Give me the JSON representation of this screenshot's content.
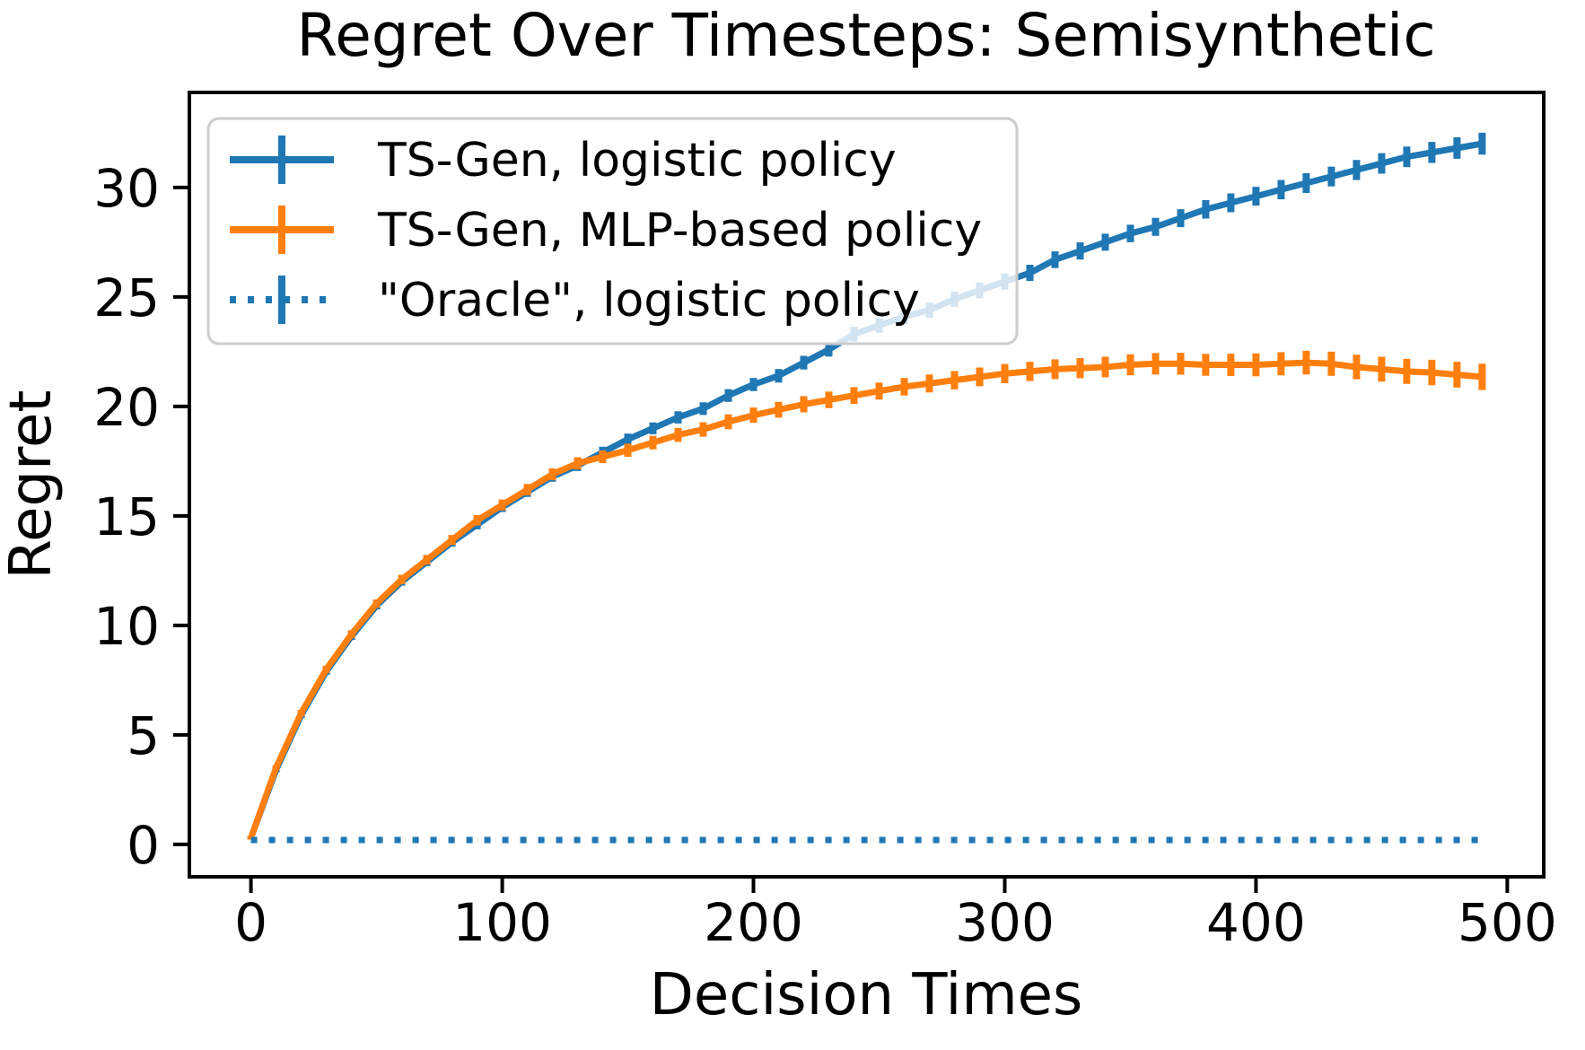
{
  "title": "Regret Over Timesteps: Semisynthetic",
  "axes": {
    "xlabel": "Decision Times",
    "ylabel": "Regret"
  },
  "legend": {
    "entries": [
      {
        "label": "TS-Gen, logistic policy",
        "color": "#1f77b4",
        "style": "solid"
      },
      {
        "label": "TS-Gen, MLP-based policy",
        "color": "#ff7f0e",
        "style": "solid"
      },
      {
        "label": "\"Oracle\", logistic policy",
        "color": "#1f77b4",
        "style": "dotted"
      }
    ],
    "border_color": "#cccccc",
    "background": "rgba(255,255,255,0.8)"
  },
  "chart_data": {
    "type": "line",
    "title": "Regret Over Timesteps: Semisynthetic",
    "xlabel": "Decision Times",
    "ylabel": "Regret",
    "xlim": [
      -24.5,
      514.5
    ],
    "ylim": [
      -1.48,
      34.34
    ],
    "x_ticks": [
      0,
      100,
      200,
      300,
      400,
      500
    ],
    "y_ticks": [
      0,
      5,
      10,
      15,
      20,
      25,
      30
    ],
    "grid": false,
    "legend_position": "upper left",
    "x": [
      0,
      10,
      20,
      30,
      40,
      50,
      60,
      70,
      80,
      90,
      100,
      110,
      120,
      130,
      140,
      150,
      160,
      170,
      180,
      190,
      200,
      210,
      220,
      230,
      240,
      250,
      260,
      270,
      280,
      290,
      300,
      310,
      320,
      330,
      340,
      350,
      360,
      370,
      380,
      390,
      400,
      410,
      420,
      430,
      440,
      450,
      460,
      470,
      480,
      490
    ],
    "series": [
      {
        "name": "TS-Gen, logistic policy",
        "color": "#1f77b4",
        "style": "solid",
        "marker": "errorbar",
        "values": [
          0.3,
          3.4,
          5.9,
          7.9,
          9.5,
          10.9,
          12.0,
          12.9,
          13.8,
          14.6,
          15.4,
          16.1,
          16.8,
          17.3,
          17.9,
          18.5,
          19.0,
          19.5,
          19.9,
          20.5,
          21.0,
          21.4,
          22.0,
          22.6,
          23.3,
          23.7,
          24.1,
          24.4,
          24.9,
          25.3,
          25.7,
          26.1,
          26.7,
          27.1,
          27.5,
          27.9,
          28.2,
          28.6,
          29.0,
          29.3,
          29.6,
          29.9,
          30.2,
          30.5,
          30.8,
          31.1,
          31.4,
          31.6,
          31.8,
          32.0
        ],
        "err": [
          0.08,
          0.11,
          0.13,
          0.15,
          0.16,
          0.17,
          0.18,
          0.19,
          0.2,
          0.21,
          0.22,
          0.23,
          0.24,
          0.25,
          0.26,
          0.26,
          0.27,
          0.28,
          0.29,
          0.29,
          0.3,
          0.31,
          0.31,
          0.32,
          0.33,
          0.33,
          0.34,
          0.35,
          0.35,
          0.36,
          0.37,
          0.37,
          0.38,
          0.39,
          0.39,
          0.4,
          0.41,
          0.41,
          0.42,
          0.43,
          0.43,
          0.44,
          0.45,
          0.45,
          0.46,
          0.47,
          0.47,
          0.48,
          0.49,
          0.5
        ]
      },
      {
        "name": "TS-Gen, MLP-based policy",
        "color": "#ff7f0e",
        "style": "solid",
        "marker": "errorbar",
        "values": [
          0.3,
          3.5,
          6.0,
          8.0,
          9.6,
          11.0,
          12.1,
          13.0,
          13.9,
          14.8,
          15.5,
          16.2,
          16.9,
          17.4,
          17.7,
          18.0,
          18.35,
          18.7,
          18.95,
          19.3,
          19.6,
          19.85,
          20.1,
          20.3,
          20.5,
          20.7,
          20.9,
          21.05,
          21.2,
          21.35,
          21.5,
          21.6,
          21.7,
          21.75,
          21.8,
          21.9,
          21.95,
          21.95,
          21.9,
          21.9,
          21.9,
          21.95,
          22.0,
          21.95,
          21.8,
          21.7,
          21.6,
          21.55,
          21.45,
          21.35
        ],
        "err": [
          0.08,
          0.12,
          0.14,
          0.16,
          0.18,
          0.19,
          0.21,
          0.22,
          0.23,
          0.24,
          0.25,
          0.26,
          0.27,
          0.28,
          0.29,
          0.3,
          0.31,
          0.32,
          0.33,
          0.34,
          0.35,
          0.36,
          0.37,
          0.38,
          0.38,
          0.39,
          0.4,
          0.41,
          0.42,
          0.43,
          0.44,
          0.44,
          0.45,
          0.46,
          0.47,
          0.48,
          0.49,
          0.5,
          0.5,
          0.51,
          0.52,
          0.53,
          0.54,
          0.55,
          0.56,
          0.57,
          0.57,
          0.58,
          0.59,
          0.6
        ]
      },
      {
        "name": "\"Oracle\", logistic policy",
        "color": "#1f77b4",
        "style": "dotted",
        "marker": "none",
        "values": [
          0.2,
          0.2,
          0.2,
          0.2,
          0.2,
          0.2,
          0.2,
          0.2,
          0.2,
          0.2,
          0.2,
          0.2,
          0.2,
          0.2,
          0.2,
          0.2,
          0.2,
          0.2,
          0.2,
          0.2,
          0.2,
          0.2,
          0.2,
          0.2,
          0.2,
          0.2,
          0.2,
          0.2,
          0.2,
          0.2,
          0.2,
          0.2,
          0.2,
          0.2,
          0.2,
          0.2,
          0.2,
          0.2,
          0.2,
          0.2,
          0.2,
          0.2,
          0.2,
          0.2,
          0.2,
          0.2,
          0.2,
          0.2,
          0.2,
          0.2
        ],
        "err": null
      }
    ]
  }
}
